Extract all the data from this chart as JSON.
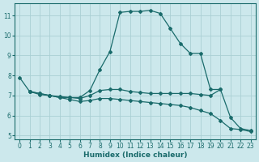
{
  "xlabel": "Humidex (Indice chaleur)",
  "bg_color": "#cce8ec",
  "grid_color": "#aacfd4",
  "line_color": "#1a6b6b",
  "xlim": [
    -0.5,
    23.5
  ],
  "ylim": [
    4.8,
    11.6
  ],
  "yticks": [
    5,
    6,
    7,
    8,
    9,
    10,
    11
  ],
  "xticks": [
    0,
    1,
    2,
    3,
    4,
    5,
    6,
    7,
    8,
    9,
    10,
    11,
    12,
    13,
    14,
    15,
    16,
    17,
    18,
    19,
    20,
    21,
    22,
    23
  ],
  "lines": [
    {
      "x": [
        0,
        1,
        2,
        3,
        4,
        5,
        6,
        7,
        8,
        9,
        10,
        11,
        12,
        13,
        14,
        15,
        16,
        17,
        18,
        19,
        20,
        21,
        22,
        23
      ],
      "y": [
        7.9,
        7.2,
        7.1,
        7.0,
        6.9,
        6.9,
        6.9,
        7.25,
        8.3,
        9.2,
        11.15,
        11.2,
        11.2,
        11.25,
        11.1,
        10.35,
        9.6,
        9.1,
        9.1,
        7.3,
        7.3,
        5.9,
        5.35,
        5.25
      ]
    },
    {
      "x": [
        1,
        2,
        3,
        4,
        5,
        6,
        7,
        8,
        9,
        10,
        11,
        12,
        13,
        14,
        15,
        16,
        17,
        18,
        19,
        20
      ],
      "y": [
        7.2,
        7.1,
        7.0,
        6.95,
        6.9,
        6.85,
        7.0,
        7.25,
        7.3,
        7.3,
        7.2,
        7.15,
        7.1,
        7.1,
        7.1,
        7.1,
        7.1,
        7.05,
        7.0,
        7.3
      ]
    },
    {
      "x": [
        1,
        2,
        3,
        4,
        5,
        6,
        7,
        8,
        9,
        10,
        11,
        12,
        13,
        14,
        15,
        16,
        17,
        18,
        19,
        20,
        21,
        22,
        23
      ],
      "y": [
        7.2,
        7.05,
        7.0,
        6.9,
        6.8,
        6.7,
        6.75,
        6.85,
        6.85,
        6.8,
        6.75,
        6.7,
        6.65,
        6.6,
        6.55,
        6.5,
        6.4,
        6.25,
        6.1,
        5.75,
        5.35,
        5.3,
        5.2
      ]
    }
  ]
}
